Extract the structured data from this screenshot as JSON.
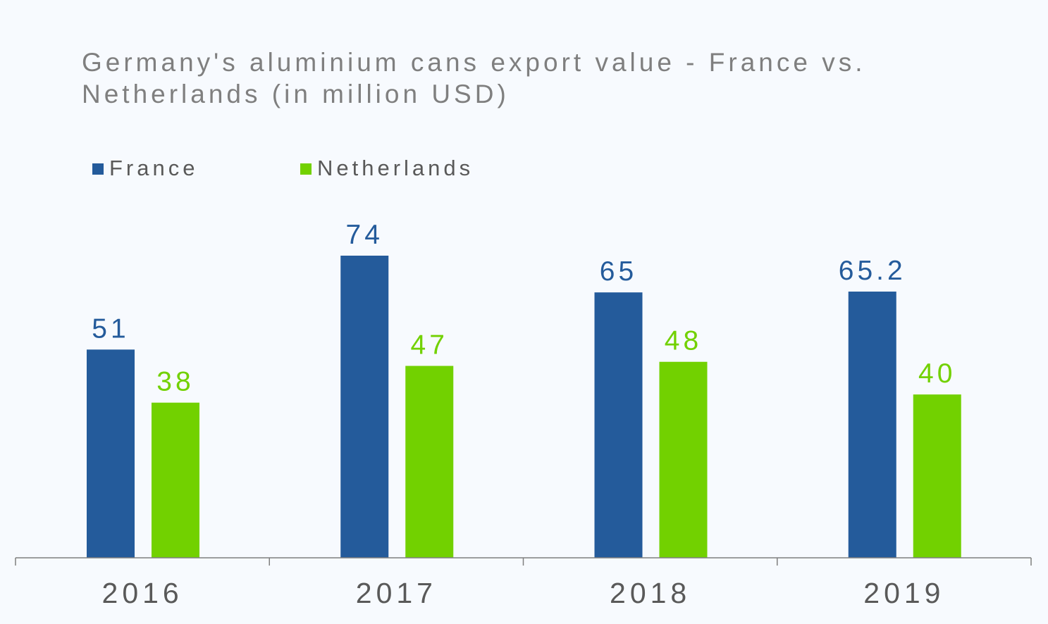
{
  "chart_data": {
    "type": "bar",
    "title": "Germany's aluminium cans export value - France vs. Netherlands (in million USD)",
    "title_lines": [
      "Germany's aluminium cans export value - France vs.",
      "Netherlands (in million USD)"
    ],
    "categories": [
      "2016",
      "2017",
      "2018",
      "2019"
    ],
    "series": [
      {
        "name": "France",
        "color": "#245b9b",
        "values": [
          51,
          74,
          65,
          65.2
        ],
        "labels": [
          "51",
          "74",
          "65",
          "65.2"
        ]
      },
      {
        "name": "Netherlands",
        "color": "#72d100",
        "values": [
          38,
          47,
          48,
          40
        ],
        "labels": [
          "38",
          "47",
          "48",
          "40"
        ]
      }
    ],
    "xlabel": "",
    "ylabel": "",
    "ylim": [
      0,
      74
    ],
    "grid": false,
    "legend_position": "top-left",
    "axis_color": "#7f7f7f",
    "tick_label_color": "#595959"
  }
}
